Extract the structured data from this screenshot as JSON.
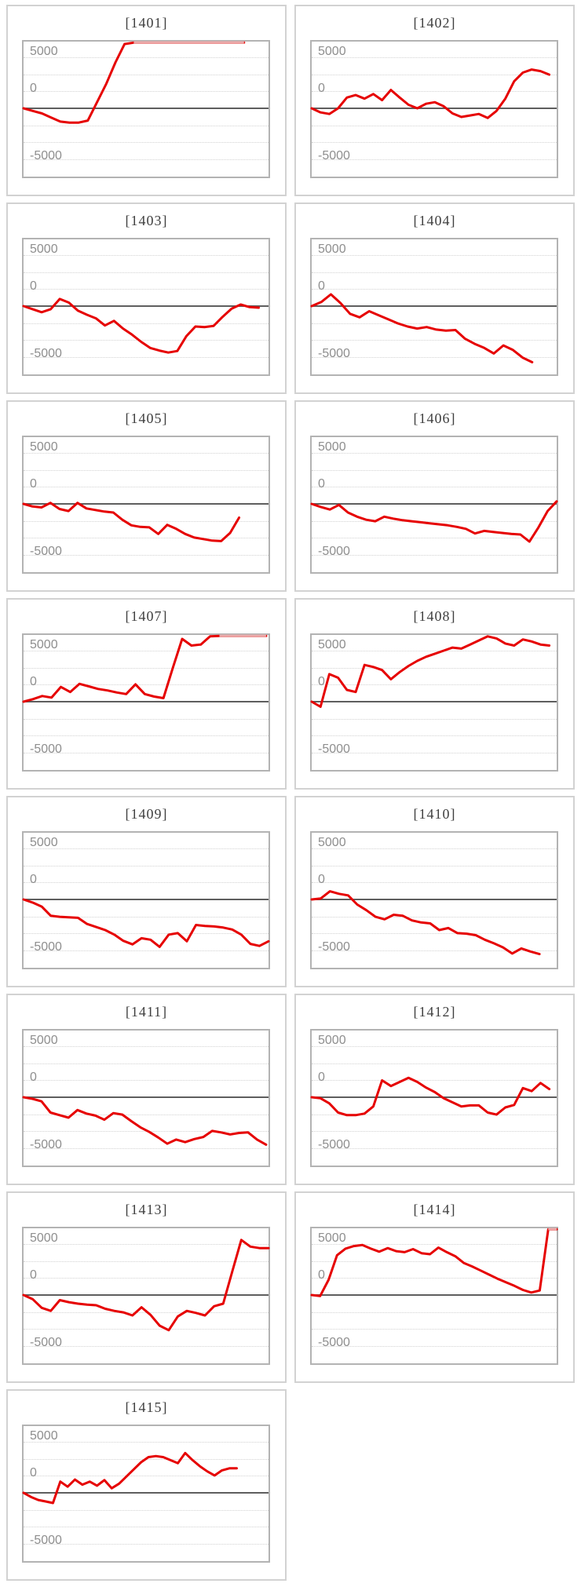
{
  "page": {
    "background": "#ffffff",
    "description_note": ""
  },
  "axis": {
    "ticks": [
      "5000",
      "0",
      "-5000"
    ],
    "tick_values": [
      5000,
      0,
      -5000
    ],
    "y_visible_range": [
      -6800,
      6800
    ],
    "gridline_step": 1667,
    "grid_style": "dotted",
    "zero_axis": "solid"
  },
  "colors": {
    "line": "#e60000",
    "line_clipped": "#eaa8a8",
    "zero_line": "#5e5e5e",
    "grid": "#d2d2d2",
    "plot_border": "#b3b3b3",
    "panel_border": "#d2d2d2",
    "title_text": "#3f3f3f",
    "tick_text": "#8e8e8e",
    "background": "#ffffff"
  },
  "chart_data": [
    {
      "type": "line",
      "title": "[1401]",
      "ylabel": "",
      "xlabel": "",
      "legend": false,
      "clip_value": 6700,
      "end_frac": 0.9,
      "values": [
        0,
        -250,
        -500,
        -900,
        -1300,
        -1400,
        -1400,
        -1200,
        600,
        2400,
        4500,
        6300,
        6700,
        6700,
        6700,
        6700,
        6700,
        6700,
        6700,
        6700,
        6700,
        6700,
        6700,
        6700,
        6700
      ]
    },
    {
      "type": "line",
      "title": "[1402]",
      "ylabel": "",
      "xlabel": "",
      "legend": false,
      "clip_value": 6700,
      "end_frac": 0.97,
      "values": [
        0,
        -400,
        -550,
        0,
        1050,
        1300,
        950,
        1400,
        800,
        1800,
        1050,
        350,
        0,
        450,
        600,
        200,
        -500,
        -850,
        -700,
        -550,
        -950,
        -250,
        950,
        2650,
        3500,
        3800,
        3650,
        3300
      ]
    },
    {
      "type": "line",
      "title": "[1403]",
      "ylabel": "",
      "xlabel": "",
      "legend": false,
      "clip_value": 6700,
      "end_frac": 0.96,
      "values": [
        0,
        -300,
        -600,
        -300,
        700,
        350,
        -450,
        -850,
        -1200,
        -1900,
        -1450,
        -2200,
        -2800,
        -3500,
        -4100,
        -4350,
        -4550,
        -4400,
        -2950,
        -2000,
        -2050,
        -1950,
        -1050,
        -250,
        150,
        -100,
        -150
      ]
    },
    {
      "type": "line",
      "title": "[1404]",
      "ylabel": "",
      "xlabel": "",
      "legend": false,
      "clip_value": 6700,
      "end_frac": 0.9,
      "values": [
        0,
        400,
        1150,
        300,
        -750,
        -1100,
        -500,
        -900,
        -1300,
        -1700,
        -2000,
        -2200,
        -2050,
        -2300,
        -2400,
        -2350,
        -3200,
        -3700,
        -4100,
        -4650,
        -3850,
        -4300,
        -5050,
        -5500
      ]
    },
    {
      "type": "line",
      "title": "[1405]",
      "ylabel": "",
      "xlabel": "",
      "legend": false,
      "clip_value": 6700,
      "end_frac": 0.88,
      "values": [
        0,
        -250,
        -350,
        100,
        -500,
        -700,
        100,
        -450,
        -600,
        -750,
        -850,
        -1550,
        -2100,
        -2250,
        -2300,
        -2950,
        -2050,
        -2450,
        -2950,
        -3300,
        -3450,
        -3600,
        -3650,
        -2850,
        -1350
      ]
    },
    {
      "type": "line",
      "title": "[1406]",
      "ylabel": "",
      "xlabel": "",
      "legend": false,
      "clip_value": 6700,
      "end_frac": 1.0,
      "values": [
        0,
        -300,
        -550,
        -100,
        -850,
        -1250,
        -1550,
        -1700,
        -1250,
        -1450,
        -1600,
        -1700,
        -1800,
        -1900,
        -2000,
        -2100,
        -2250,
        -2450,
        -2900,
        -2650,
        -2750,
        -2850,
        -2950,
        -3000,
        -3700,
        -2300,
        -700,
        250
      ]
    },
    {
      "type": "line",
      "title": "[1407]",
      "ylabel": "",
      "xlabel": "",
      "legend": false,
      "clip_value": 6700,
      "end_frac": 0.99,
      "values": [
        0,
        250,
        550,
        400,
        1450,
        950,
        1750,
        1500,
        1250,
        1100,
        900,
        750,
        1700,
        750,
        500,
        350,
        3300,
        6150,
        5500,
        5600,
        6400,
        6700,
        6700,
        6700,
        6700,
        6700,
        6700
      ]
    },
    {
      "type": "line",
      "title": "[1408]",
      "ylabel": "",
      "xlabel": "",
      "legend": false,
      "clip_value": 6700,
      "end_frac": 0.97,
      "values": [
        0,
        -500,
        2700,
        2350,
        1150,
        950,
        3600,
        3400,
        3100,
        2200,
        2900,
        3500,
        4000,
        4400,
        4700,
        5000,
        5300,
        5200,
        5600,
        6000,
        6400,
        6200,
        5700,
        5500,
        6100,
        5900,
        5600,
        5500
      ]
    },
    {
      "type": "line",
      "title": "[1409]",
      "ylabel": "",
      "xlabel": "",
      "legend": false,
      "clip_value": 6700,
      "end_frac": 1.0,
      "values": [
        0,
        -300,
        -700,
        -1600,
        -1700,
        -1750,
        -1800,
        -2400,
        -2700,
        -3000,
        -3450,
        -4050,
        -4400,
        -3800,
        -3950,
        -4650,
        -3450,
        -3300,
        -4100,
        -2500,
        -2600,
        -2650,
        -2750,
        -2950,
        -3450,
        -4350,
        -4550,
        -4100
      ]
    },
    {
      "type": "line",
      "title": "[1410]",
      "ylabel": "",
      "xlabel": "",
      "legend": false,
      "clip_value": 6700,
      "end_frac": 0.93,
      "values": [
        0,
        100,
        800,
        550,
        400,
        -500,
        -1050,
        -1700,
        -1950,
        -1500,
        -1600,
        -2050,
        -2250,
        -2350,
        -3000,
        -2800,
        -3300,
        -3350,
        -3500,
        -3950,
        -4300,
        -4700,
        -5300,
        -4800,
        -5100,
        -5350
      ]
    },
    {
      "type": "line",
      "title": "[1411]",
      "ylabel": "",
      "xlabel": "",
      "legend": false,
      "clip_value": 6700,
      "end_frac": 0.99,
      "values": [
        0,
        -150,
        -400,
        -1500,
        -1750,
        -2000,
        -1250,
        -1600,
        -1800,
        -2200,
        -1550,
        -1700,
        -2350,
        -2950,
        -3400,
        -3950,
        -4550,
        -4150,
        -4400,
        -4100,
        -3900,
        -3300,
        -3450,
        -3650,
        -3500,
        -3450,
        -4150,
        -4650
      ]
    },
    {
      "type": "line",
      "title": "[1412]",
      "ylabel": "",
      "xlabel": "",
      "legend": false,
      "clip_value": 6700,
      "end_frac": 0.97,
      "values": [
        0,
        -100,
        -600,
        -1500,
        -1750,
        -1750,
        -1600,
        -900,
        1650,
        1100,
        1500,
        1900,
        1500,
        950,
        500,
        -100,
        -500,
        -900,
        -800,
        -800,
        -1500,
        -1700,
        -1000,
        -750,
        900,
        600,
        1400,
        800
      ]
    },
    {
      "type": "line",
      "title": "[1413]",
      "ylabel": "",
      "xlabel": "",
      "legend": false,
      "clip_value": 6700,
      "end_frac": 1.0,
      "values": [
        0,
        -400,
        -1250,
        -1550,
        -500,
        -700,
        -850,
        -950,
        -1000,
        -1350,
        -1550,
        -1700,
        -2000,
        -1200,
        -1950,
        -3000,
        -3450,
        -2100,
        -1550,
        -1750,
        -2000,
        -1100,
        -850,
        2300,
        5400,
        4750,
        4600,
        4600
      ]
    },
    {
      "type": "line",
      "title": "[1414]",
      "ylabel": "",
      "xlabel": "",
      "legend": false,
      "clip_value": 6700,
      "end_frac": 1.0,
      "values": [
        0,
        -100,
        1500,
        3900,
        4550,
        4800,
        4900,
        4550,
        4250,
        4600,
        4300,
        4200,
        4500,
        4100,
        4000,
        4650,
        4200,
        3800,
        3150,
        2800,
        2400,
        2000,
        1600,
        1250,
        900,
        500,
        250,
        450,
        6700,
        6700
      ]
    },
    {
      "type": "line",
      "title": "[1415]",
      "ylabel": "",
      "xlabel": "",
      "legend": false,
      "clip_value": 6700,
      "end_frac": 0.87,
      "values": [
        0,
        -400,
        -700,
        -850,
        -1000,
        1100,
        600,
        1300,
        800,
        1100,
        700,
        1250,
        450,
        900,
        1600,
        2300,
        3000,
        3500,
        3600,
        3500,
        3200,
        2900,
        3900,
        3200,
        2600,
        2100,
        1700,
        2200,
        2400,
        2400
      ]
    }
  ]
}
